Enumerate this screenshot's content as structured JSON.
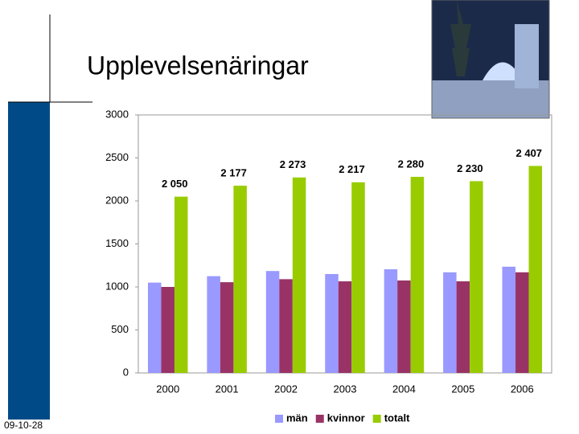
{
  "chart_data": {
    "type": "bar",
    "title": "Upplevelsenäringar",
    "categories": [
      "2000",
      "2001",
      "2002",
      "2003",
      "2004",
      "2005",
      "2006"
    ],
    "series": [
      {
        "name": "män",
        "color": "#9999ff",
        "values": [
          1050,
          1125,
          1185,
          1150,
          1205,
          1170,
          1235
        ]
      },
      {
        "name": "kvinnor",
        "color": "#993366",
        "values": [
          1000,
          1055,
          1090,
          1065,
          1075,
          1065,
          1170
        ]
      },
      {
        "name": "totalt",
        "color": "#99cc00",
        "values": [
          2050,
          2177,
          2273,
          2217,
          2280,
          2230,
          2407
        ],
        "value_labels": [
          "2 050",
          "2 177",
          "2 273",
          "2 217",
          "2 280",
          "2 230",
          "2 407"
        ]
      }
    ],
    "ylim": [
      0,
      3000
    ],
    "yticks": [
      0,
      500,
      1000,
      1500,
      2000,
      2500,
      3000
    ],
    "grid": false,
    "legend": "bottom"
  },
  "footer": {
    "date": "09-10-28"
  }
}
